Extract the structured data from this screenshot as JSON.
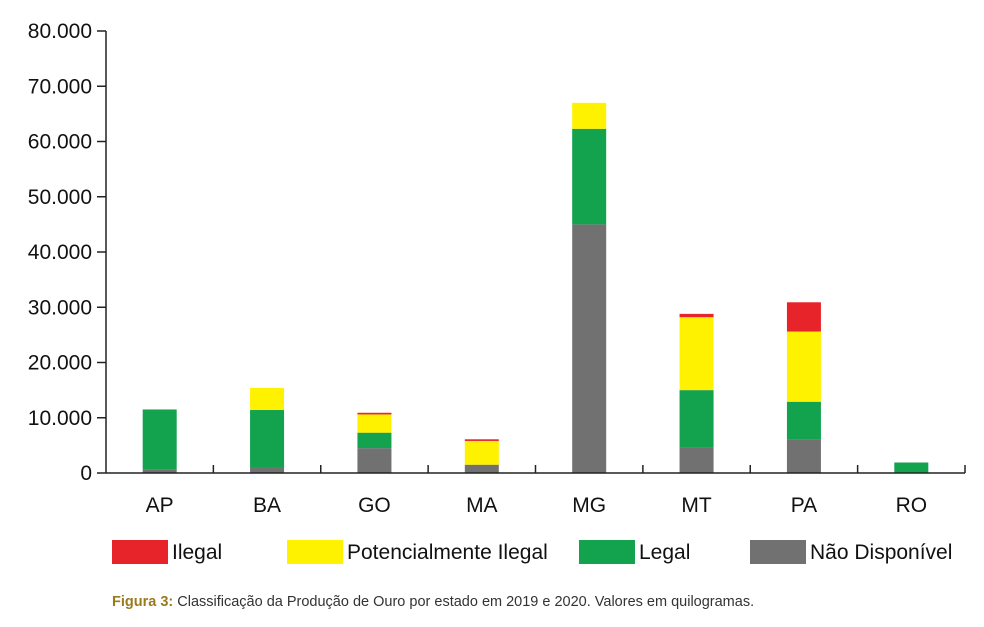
{
  "chart_data": {
    "type": "bar",
    "stacked": true,
    "categories": [
      "AP",
      "BA",
      "GO",
      "MA",
      "MG",
      "MT",
      "PA",
      "RO"
    ],
    "series": [
      {
        "name": "Não Disponível",
        "color": "#717171",
        "values": [
          700,
          1000,
          4500,
          1500,
          45000,
          4600,
          6000,
          0
        ]
      },
      {
        "name": "Legal",
        "color": "#13a24e",
        "values": [
          10800,
          10400,
          2800,
          0,
          17300,
          10400,
          6900,
          1900
        ]
      },
      {
        "name": "Potencialmente Ilegal",
        "color": "#fff200",
        "values": [
          0,
          4000,
          3300,
          4300,
          4700,
          13200,
          12700,
          0
        ]
      },
      {
        "name": "Ilegal",
        "color": "#e8242b",
        "values": [
          0,
          0,
          300,
          300,
          0,
          600,
          5300,
          0
        ]
      }
    ],
    "y_ticks": [
      "0",
      "10.000",
      "20.000",
      "30.000",
      "40.000",
      "50.000",
      "60.000",
      "70.000",
      "80.000"
    ],
    "ylim": [
      0,
      80000
    ],
    "legend_order": [
      "Ilegal",
      "Potencialmente Ilegal",
      "Legal",
      "Não Disponível"
    ],
    "legend_position": "bottom",
    "grid": false,
    "title": "",
    "xlabel": "",
    "ylabel": ""
  },
  "caption": {
    "label": "Figura 3:",
    "text": " Classificação da Produção de Ouro por estado em 2019 e 2020. Valores em quilogramas."
  }
}
